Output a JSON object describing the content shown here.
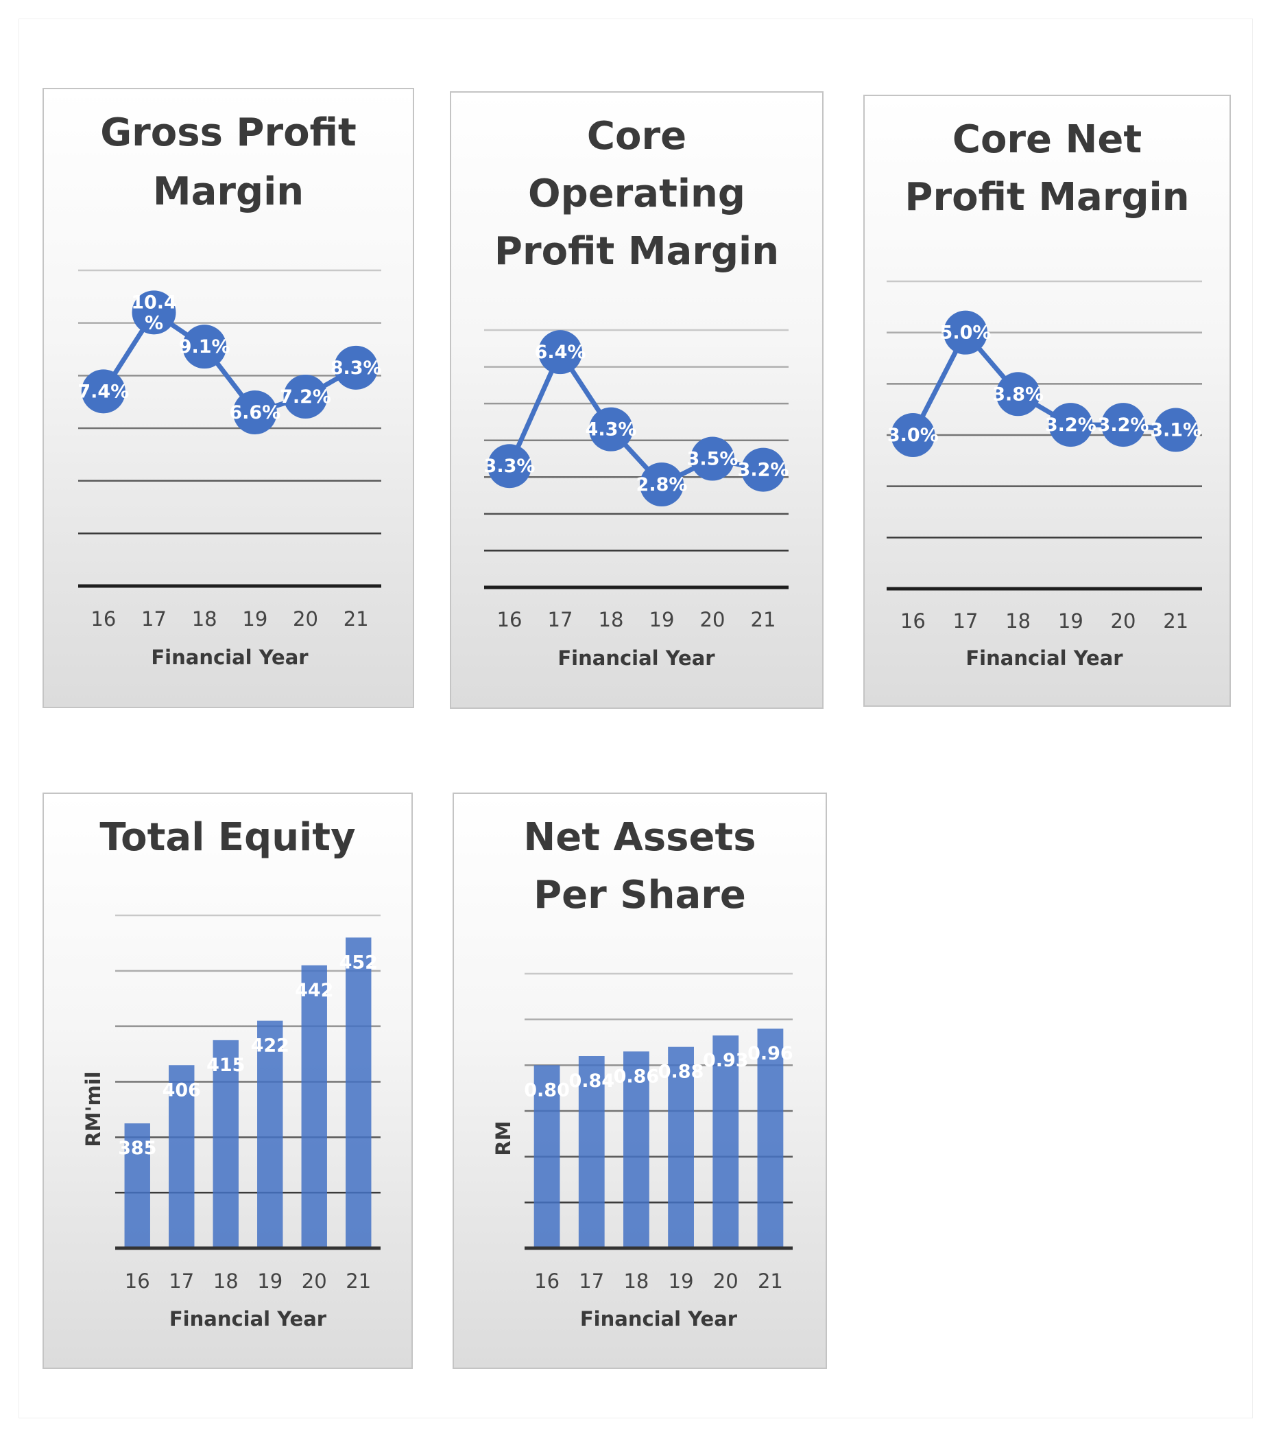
{
  "charts": [
    {
      "type": "line",
      "title_lines": [
        "Gross Profit",
        "Margin"
      ],
      "categories": [
        "16",
        "17",
        "18",
        "19",
        "20",
        "21"
      ],
      "values": [
        7.4,
        10.4,
        9.1,
        6.6,
        7.2,
        8.3
      ],
      "data_labels": [
        "7.4%",
        "10.4\n%",
        "9.1%",
        "6.6%",
        "7.2%",
        "8.3%"
      ],
      "xlabel": "Financial Year",
      "ylabel": "",
      "ylim": [
        0,
        12
      ],
      "gridlines": 7,
      "grid": true,
      "color": "#4472c4"
    },
    {
      "type": "line",
      "title_lines": [
        "Core",
        "Operating",
        "Profit Margin"
      ],
      "categories": [
        "16",
        "17",
        "18",
        "19",
        "20",
        "21"
      ],
      "values": [
        3.3,
        6.4,
        4.3,
        2.8,
        3.5,
        3.2
      ],
      "data_labels": [
        "3.3%",
        "6.4%",
        "4.3%",
        "2.8%",
        "3.5%",
        "3.2%"
      ],
      "xlabel": "Financial Year",
      "ylabel": "",
      "ylim": [
        0,
        7
      ],
      "gridlines": 8,
      "grid": true,
      "color": "#4472c4"
    },
    {
      "type": "line",
      "title_lines": [
        "Core Net",
        "Profit Margin"
      ],
      "categories": [
        "16",
        "17",
        "18",
        "19",
        "20",
        "21"
      ],
      "values": [
        3.0,
        5.0,
        3.8,
        3.2,
        3.2,
        3.1
      ],
      "data_labels": [
        "3.0%",
        "5.0%",
        "3.8%",
        "3.2%",
        "3.2%",
        "3.1%"
      ],
      "xlabel": "Financial Year",
      "ylabel": "",
      "ylim": [
        0,
        6
      ],
      "gridlines": 7,
      "grid": true,
      "color": "#4472c4"
    },
    {
      "type": "bar",
      "title_lines": [
        "Total Equity"
      ],
      "categories": [
        "16",
        "17",
        "18",
        "19",
        "20",
        "21"
      ],
      "values": [
        385,
        406,
        415,
        422,
        442,
        452
      ],
      "data_labels": [
        "385",
        "406",
        "415",
        "422",
        "442",
        "452"
      ],
      "xlabel": "Financial Year",
      "ylabel": "RM'mil",
      "ylim": [
        340,
        460
      ],
      "gridlines": 7,
      "grid": true,
      "color": "#4472c4"
    },
    {
      "type": "bar",
      "title_lines": [
        "Net Assets",
        "Per Share"
      ],
      "categories": [
        "16",
        "17",
        "18",
        "19",
        "20",
        "21"
      ],
      "values": [
        0.8,
        0.84,
        0.86,
        0.88,
        0.93,
        0.96
      ],
      "data_labels": [
        "0.80",
        "0.84",
        "0.86",
        "0.88",
        "0.93",
        "0.96"
      ],
      "xlabel": "Financial Year",
      "ylabel": "RM",
      "ylim": [
        0,
        1.2
      ],
      "gridlines": 7,
      "grid": true,
      "color": "#4472c4"
    }
  ]
}
